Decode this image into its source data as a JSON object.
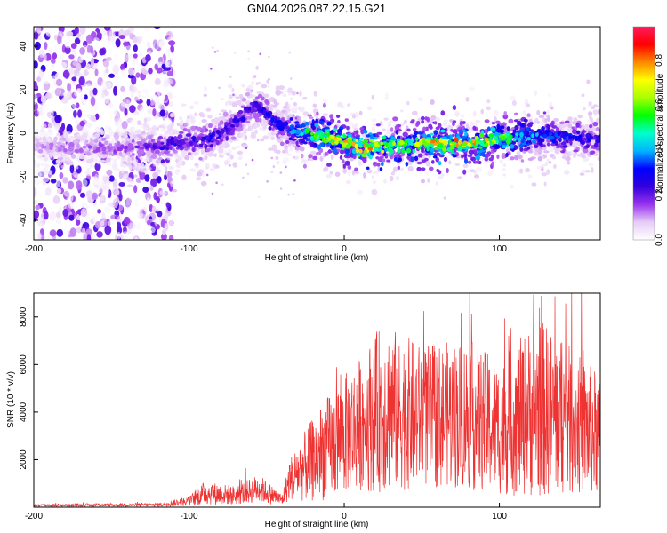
{
  "title": "GN04.2026.087.22.15.G21",
  "chart_data": [
    {
      "type": "heatmap",
      "name": "spectrogram",
      "xlabel": "Height of straight line (km)",
      "ylabel": "Frequency (Hz)",
      "xlim": [
        -200,
        165
      ],
      "ylim": [
        -49,
        49
      ],
      "xticks": [
        -200,
        -100,
        0,
        100
      ],
      "yticks": [
        -40,
        -20,
        0,
        20,
        40
      ],
      "colorbar": {
        "label": "Normalized spectral amplitude",
        "range": [
          0,
          0.95
        ],
        "ticks": [
          0.0,
          0.2,
          0.4,
          0.6,
          0.8
        ],
        "tick_labels": [
          "0.0",
          "0.2",
          "0.4",
          "0.6",
          "0.8"
        ],
        "colors": [
          "#ffffff",
          "#e6ccf6",
          "#9933ee",
          "#3300dd",
          "#0000ff",
          "#00b4ff",
          "#00ffcc",
          "#00ff00",
          "#aaff00",
          "#ffff00",
          "#ff8800",
          "#ff0000",
          "#ff1a5e"
        ]
      },
      "ridge": [
        {
          "x": -200,
          "f": -6,
          "a": 0.12
        },
        {
          "x": -170,
          "f": -7,
          "a": 0.15
        },
        {
          "x": -140,
          "f": -7,
          "a": 0.18
        },
        {
          "x": -120,
          "f": -6,
          "a": 0.25
        },
        {
          "x": -100,
          "f": -4,
          "a": 0.3
        },
        {
          "x": -85,
          "f": -2,
          "a": 0.32
        },
        {
          "x": -75,
          "f": 2,
          "a": 0.3
        },
        {
          "x": -65,
          "f": 8,
          "a": 0.28
        },
        {
          "x": -58,
          "f": 14,
          "a": 0.3
        },
        {
          "x": -52,
          "f": 10,
          "a": 0.3
        },
        {
          "x": -45,
          "f": 5,
          "a": 0.35
        },
        {
          "x": -35,
          "f": 2,
          "a": 0.4
        },
        {
          "x": -25,
          "f": 0,
          "a": 0.55
        },
        {
          "x": -10,
          "f": -2,
          "a": 0.75
        },
        {
          "x": 0,
          "f": -4,
          "a": 0.8
        },
        {
          "x": 15,
          "f": -7,
          "a": 0.85
        },
        {
          "x": 30,
          "f": -5,
          "a": 0.7
        },
        {
          "x": 50,
          "f": -4,
          "a": 0.8
        },
        {
          "x": 70,
          "f": -5,
          "a": 0.85
        },
        {
          "x": 90,
          "f": -4,
          "a": 0.8
        },
        {
          "x": 110,
          "f": -2,
          "a": 0.55
        },
        {
          "x": 130,
          "f": -1,
          "a": 0.4
        },
        {
          "x": 150,
          "f": -2,
          "a": 0.35
        },
        {
          "x": 165,
          "f": -3,
          "a": 0.32
        }
      ],
      "noise_region": {
        "x_from": -200,
        "x_to": -110,
        "f_from": -49,
        "f_to": 49,
        "max_amplitude": 0.25
      }
    },
    {
      "type": "line",
      "name": "snr",
      "xlabel": "Height of straight line (km)",
      "ylabel": "SNR (10 * v/v)",
      "xlim": [
        -200,
        165
      ],
      "ylim": [
        0,
        9000
      ],
      "xticks": [
        -200,
        -100,
        0,
        100
      ],
      "yticks": [
        2000,
        4000,
        6000,
        8000
      ],
      "color": "#ee3333",
      "envelope": [
        {
          "x": -200,
          "mean": 80,
          "spread": 60
        },
        {
          "x": -120,
          "mean": 100,
          "spread": 80
        },
        {
          "x": -100,
          "mean": 250,
          "spread": 200
        },
        {
          "x": -90,
          "mean": 600,
          "spread": 500
        },
        {
          "x": -70,
          "mean": 500,
          "spread": 400
        },
        {
          "x": -55,
          "mean": 800,
          "spread": 600
        },
        {
          "x": -40,
          "mean": 300,
          "spread": 250
        },
        {
          "x": -35,
          "mean": 1200,
          "spread": 900
        },
        {
          "x": -20,
          "mean": 2000,
          "spread": 1800
        },
        {
          "x": -5,
          "mean": 2800,
          "spread": 2400
        },
        {
          "x": 10,
          "mean": 3500,
          "spread": 2800
        },
        {
          "x": 25,
          "mean": 4200,
          "spread": 3600
        },
        {
          "x": 50,
          "mean": 3800,
          "spread": 3000
        },
        {
          "x": 80,
          "mean": 3900,
          "spread": 3200
        },
        {
          "x": 100,
          "mean": 3300,
          "spread": 2800
        },
        {
          "x": 125,
          "mean": 4200,
          "spread": 3800
        },
        {
          "x": 150,
          "mean": 3500,
          "spread": 3000
        },
        {
          "x": 165,
          "mean": 3000,
          "spread": 2600
        }
      ]
    }
  ]
}
